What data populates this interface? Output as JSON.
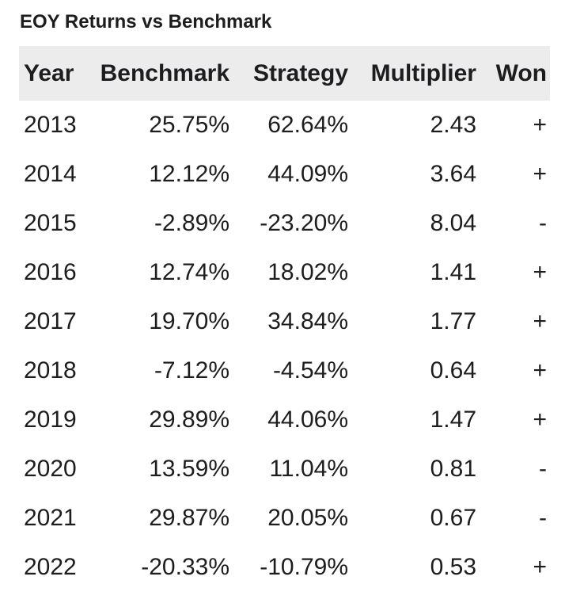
{
  "title": "EOY Returns vs Benchmark",
  "colors": {
    "header_bg": "#ececec",
    "text": "#1d1d1f"
  },
  "chart_data": {
    "type": "table",
    "title": "EOY Returns vs Benchmark",
    "columns": [
      "Year",
      "Benchmark",
      "Strategy",
      "Multiplier",
      "Won"
    ],
    "rows": [
      [
        "2013",
        "25.75%",
        "62.64%",
        "2.43",
        "+"
      ],
      [
        "2014",
        "12.12%",
        "44.09%",
        "3.64",
        "+"
      ],
      [
        "2015",
        "-2.89%",
        "-23.20%",
        "8.04",
        "-"
      ],
      [
        "2016",
        "12.74%",
        "18.02%",
        "1.41",
        "+"
      ],
      [
        "2017",
        "19.70%",
        "34.84%",
        "1.77",
        "+"
      ],
      [
        "2018",
        "-7.12%",
        "-4.54%",
        "0.64",
        "+"
      ],
      [
        "2019",
        "29.89%",
        "44.06%",
        "1.47",
        "+"
      ],
      [
        "2020",
        "13.59%",
        "11.04%",
        "0.81",
        "-"
      ],
      [
        "2021",
        "29.87%",
        "20.05%",
        "0.67",
        "-"
      ],
      [
        "2022",
        "-20.33%",
        "-10.79%",
        "0.53",
        "+"
      ]
    ]
  }
}
